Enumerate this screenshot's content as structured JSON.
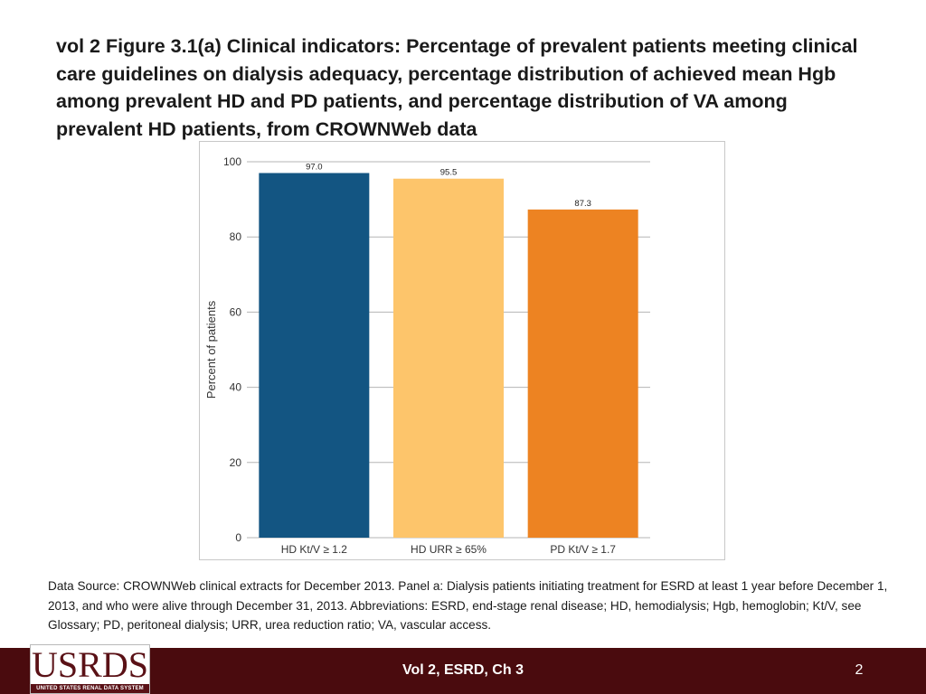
{
  "slide": {
    "title": "vol 2  Figure 3.1(a) Clinical indicators: Percentage of prevalent patients meeting clinical care guidelines on dialysis adequacy, percentage distribution of achieved mean Hgb among prevalent HD and PD patients, and percentage distribution of VA among prevalent HD patients, from CROWNWeb data",
    "source_note": "Data Source: CROWNWeb clinical extracts for December 2013. Panel a: Dialysis patients initiating treatment for ESRD at least 1 year before December 1, 2013, and who were alive through December 31, 2013. Abbreviations: ESRD, end-stage renal disease; HD, hemodialysis; Hgb, hemoglobin; Kt/V, see Glossary; PD, peritoneal dialysis; URR, urea reduction ratio; VA, vascular access."
  },
  "footer": {
    "logo_text": "USRDS",
    "logo_subtitle": "UNITED STATES RENAL DATA SYSTEM",
    "center_label": "Vol 2, ESRD, Ch 3",
    "page_number": "2"
  },
  "chart_data": {
    "type": "bar",
    "title": "",
    "xlabel": "",
    "ylabel": "Percent of patients",
    "ylim": [
      0,
      100
    ],
    "yticks": [
      0,
      20,
      40,
      60,
      80,
      100
    ],
    "grid": true,
    "categories": [
      "HD Kt/V ≥ 1.2",
      "HD URR ≥ 65%",
      "PD Kt/V ≥ 1.7"
    ],
    "values": [
      97.0,
      95.5,
      87.3
    ],
    "value_labels": [
      "97.0",
      "95.5",
      "87.3"
    ],
    "colors": [
      "#135582",
      "#fdc56b",
      "#ed8322"
    ]
  }
}
